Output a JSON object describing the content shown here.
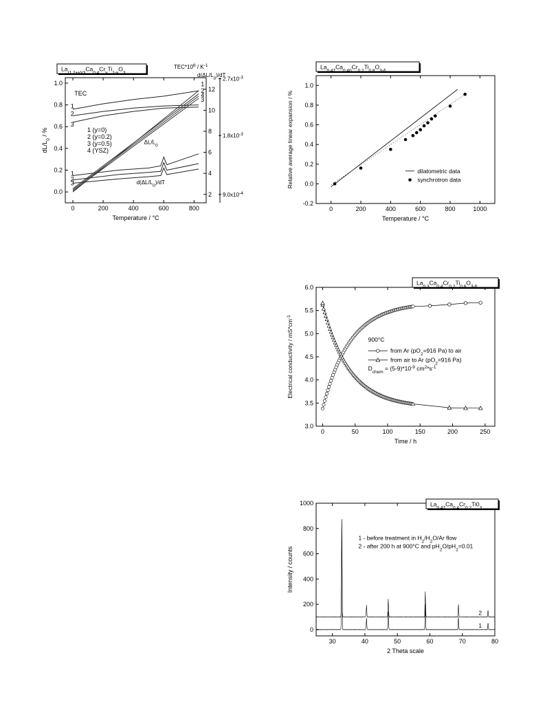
{
  "chart_data": [
    {
      "type": "line",
      "title": "La(1.2+y)/3Ca0.4Cr0.6Ti(1-y)O3",
      "title_parts": [
        [
          "La",
          ""
        ],
        [
          "(1.2+y)/3",
          "sub"
        ],
        [
          "Ca",
          ""
        ],
        [
          "0.4",
          "sub"
        ],
        [
          "Cr",
          ""
        ],
        [
          "y",
          "sub"
        ],
        [
          "Ti",
          ""
        ],
        [
          "1-y",
          "sub"
        ],
        [
          "O",
          ""
        ],
        [
          "3",
          "sub"
        ]
      ],
      "xlabel": "Temperature / °C",
      "ylabel": "dL/L0 / %",
      "y2label": "TEC*10^6 / K^-1",
      "y3label": "d(ΔL/L0)/dT",
      "xlim": [
        -50,
        880
      ],
      "ylim": [
        -0.1,
        1.05
      ],
      "xticks": [
        0,
        200,
        400,
        600,
        800
      ],
      "yticks": [
        0.0,
        0.2,
        0.4,
        0.6,
        0.8,
        1.0
      ],
      "y2ticks": [
        2,
        4,
        6,
        8,
        10,
        12
      ],
      "y3ticks": [
        "9.0x10^-4",
        "1.8x10^-3",
        "2.7x10^-3"
      ],
      "legend": [
        "1 (y=0)",
        "2 (y=0.2)",
        "3 (y=0.5)",
        "4 (YSZ)"
      ],
      "annotations": [
        "TEC",
        "ΔL/L0",
        "d(ΔL/L0)/dT",
        "1",
        "2",
        "3",
        "1",
        "2",
        "3",
        "1",
        "2",
        "4",
        "3"
      ],
      "series": [
        {
          "name": "1 (y=0)",
          "dl": [
            [
              0,
              0.0
            ],
            [
              830,
              0.93
            ]
          ],
          "tec": [
            [
              0,
              0.76
            ],
            [
              200,
              0.81
            ],
            [
              400,
              0.85
            ],
            [
              600,
              0.88
            ],
            [
              830,
              0.93
            ]
          ],
          "deriv": [
            [
              0,
              0.15
            ],
            [
              300,
              0.2
            ],
            [
              500,
              0.22
            ],
            [
              580,
              0.24
            ],
            [
              600,
              0.32
            ],
            [
              620,
              0.25
            ],
            [
              830,
              0.35
            ]
          ]
        },
        {
          "name": "2 (y=0.2)",
          "dl": [
            [
              0,
              0.02
            ],
            [
              830,
              0.88
            ]
          ],
          "tec": [
            [
              0,
              0.7
            ],
            [
              200,
              0.74
            ],
            [
              400,
              0.77
            ],
            [
              600,
              0.79
            ],
            [
              830,
              0.8
            ]
          ],
          "deriv": [
            [
              0,
              0.11
            ],
            [
              300,
              0.16
            ],
            [
              500,
              0.18
            ],
            [
              580,
              0.19
            ],
            [
              600,
              0.27
            ],
            [
              620,
              0.2
            ],
            [
              830,
              0.26
            ]
          ]
        },
        {
          "name": "3 (y=0.5)",
          "dl": [
            [
              0,
              0.01
            ],
            [
              830,
              0.86
            ]
          ],
          "tec": [
            [
              0,
              0.64
            ],
            [
              200,
              0.7
            ],
            [
              400,
              0.74
            ],
            [
              600,
              0.77
            ],
            [
              830,
              0.78
            ]
          ],
          "deriv": [
            [
              0,
              0.08
            ],
            [
              300,
              0.12
            ],
            [
              500,
              0.14
            ],
            [
              580,
              0.15
            ],
            [
              600,
              0.22
            ],
            [
              620,
              0.16
            ],
            [
              830,
              0.21
            ]
          ]
        },
        {
          "name": "4 (YSZ)",
          "dl": [
            [
              0,
              0.03
            ],
            [
              830,
              0.9
            ]
          ]
        }
      ]
    },
    {
      "type": "scatter",
      "title": "La0.47Ca0.40Cr0.2Ti0.8O3-δ",
      "title_parts": [
        [
          "La",
          ""
        ],
        [
          "0.47",
          "sub"
        ],
        [
          "Ca",
          ""
        ],
        [
          "0.40",
          "sub"
        ],
        [
          "Cr",
          ""
        ],
        [
          "0.2",
          "sub"
        ],
        [
          "Ti",
          ""
        ],
        [
          "0.8",
          "sub"
        ],
        [
          "O",
          ""
        ],
        [
          "3-δ",
          "sub"
        ]
      ],
      "xlabel": "Temperature / °C",
      "ylabel": "Relative average linear expansion / %",
      "xlim": [
        -100,
        1100
      ],
      "ylim": [
        -0.2,
        1.1
      ],
      "xticks": [
        0,
        200,
        400,
        600,
        800,
        1000
      ],
      "yticks": [
        -0.2,
        0.0,
        0.2,
        0.4,
        0.6,
        0.8,
        1.0
      ],
      "legend": [
        "dilatometric data",
        "synchrotron data"
      ],
      "series": [
        {
          "name": "dilatometric data",
          "kind": "line",
          "points": [
            [
              0,
              -0.03
            ],
            [
              850,
              0.96
            ]
          ]
        },
        {
          "name": "fit",
          "kind": "dotted",
          "points": [
            [
              0,
              -0.01
            ],
            [
              900,
              0.91
            ]
          ]
        },
        {
          "name": "synchrotron data",
          "kind": "points",
          "points": [
            [
              25,
              0.0
            ],
            [
              200,
              0.16
            ],
            [
              400,
              0.35
            ],
            [
              500,
              0.45
            ],
            [
              550,
              0.49
            ],
            [
              575,
              0.52
            ],
            [
              600,
              0.55
            ],
            [
              625,
              0.59
            ],
            [
              650,
              0.62
            ],
            [
              675,
              0.66
            ],
            [
              700,
              0.69
            ],
            [
              800,
              0.79
            ],
            [
              900,
              0.91
            ]
          ]
        }
      ]
    },
    {
      "type": "scatter",
      "title": "La0.3Ca0.4Cr0.2Ti0.8O3-δ",
      "title_parts": [
        [
          "La",
          ""
        ],
        [
          "0.3",
          "sub"
        ],
        [
          "Ca",
          ""
        ],
        [
          "0.4",
          "sub"
        ],
        [
          "Cr",
          ""
        ],
        [
          "0.2",
          "sub"
        ],
        [
          "Ti",
          ""
        ],
        [
          "0.8",
          "sub"
        ],
        [
          "O",
          ""
        ],
        [
          "3-δ",
          "sub"
        ]
      ],
      "xlabel": "Time / h",
      "ylabel": "Electrical conductivity / mS*cm-1",
      "xlim": [
        -10,
        265
      ],
      "ylim": [
        3.0,
        6.0
      ],
      "xticks": [
        0,
        50,
        100,
        150,
        200,
        250
      ],
      "yticks": [
        3.0,
        3.5,
        4.0,
        4.5,
        5.0,
        5.5,
        6.0
      ],
      "annotations": [
        "900°C",
        "Dchem = (5-9)*10^-9 cm^2*s^-1"
      ],
      "legend": [
        "from Ar (pO2=916 Pa) to air",
        "from air to Ar (pO2=916 Pa)"
      ],
      "series": [
        {
          "name": "from Ar (pO2=916 Pa) to air",
          "marker": "circle",
          "y0": 3.38,
          "yinf": 5.67,
          "tau": 42,
          "extra_points": [
            [
              165,
              5.6
            ],
            [
              195,
              5.63
            ],
            [
              220,
              5.66
            ],
            [
              243,
              5.67
            ]
          ]
        },
        {
          "name": "from air to Ar (pO2=916 Pa)",
          "marker": "triangle",
          "y0": 5.62,
          "yinf": 3.4,
          "tau": 42,
          "extra_points": [
            [
              0,
              5.66
            ],
            [
              195,
              3.4
            ],
            [
              220,
              3.39
            ],
            [
              243,
              3.39
            ]
          ]
        }
      ]
    },
    {
      "type": "line",
      "title": "La0.47Ca0.4Cr0.2Ti03",
      "title_parts": [
        [
          "La",
          ""
        ],
        [
          "0.47",
          "sub"
        ],
        [
          "Ca",
          ""
        ],
        [
          "0.4",
          "sub"
        ],
        [
          "Cr",
          ""
        ],
        [
          "0.2",
          "sub"
        ],
        [
          "Ti0",
          ""
        ],
        [
          "3",
          "sub"
        ]
      ],
      "xlabel": "2 Theta scale",
      "ylabel": "Intensity / counts",
      "xlim": [
        25,
        80
      ],
      "ylim": [
        -50,
        1000
      ],
      "xticks": [
        30,
        40,
        50,
        60,
        70,
        80
      ],
      "yticks": [
        0,
        200,
        400,
        600,
        800,
        1000
      ],
      "legend": [
        "1 - before treatment in H2/H2O/Ar flow",
        "2 - after 200 h at 900°C and pH2O/pH2=0.01"
      ],
      "series": [
        {
          "name": "1",
          "baseline": 0,
          "peaks": [
            [
              32.9,
              870
            ],
            [
              40.5,
              95
            ],
            [
              47.2,
              145
            ],
            [
              58.6,
              200
            ],
            [
              68.8,
              100
            ],
            [
              77.9,
              50
            ]
          ]
        },
        {
          "name": "2",
          "baseline": 100,
          "peaks": [
            [
              32.9,
              770
            ],
            [
              40.5,
              95
            ],
            [
              47.2,
              145
            ],
            [
              58.6,
              200
            ],
            [
              68.8,
              100
            ],
            [
              77.9,
              50
            ]
          ]
        }
      ]
    }
  ]
}
